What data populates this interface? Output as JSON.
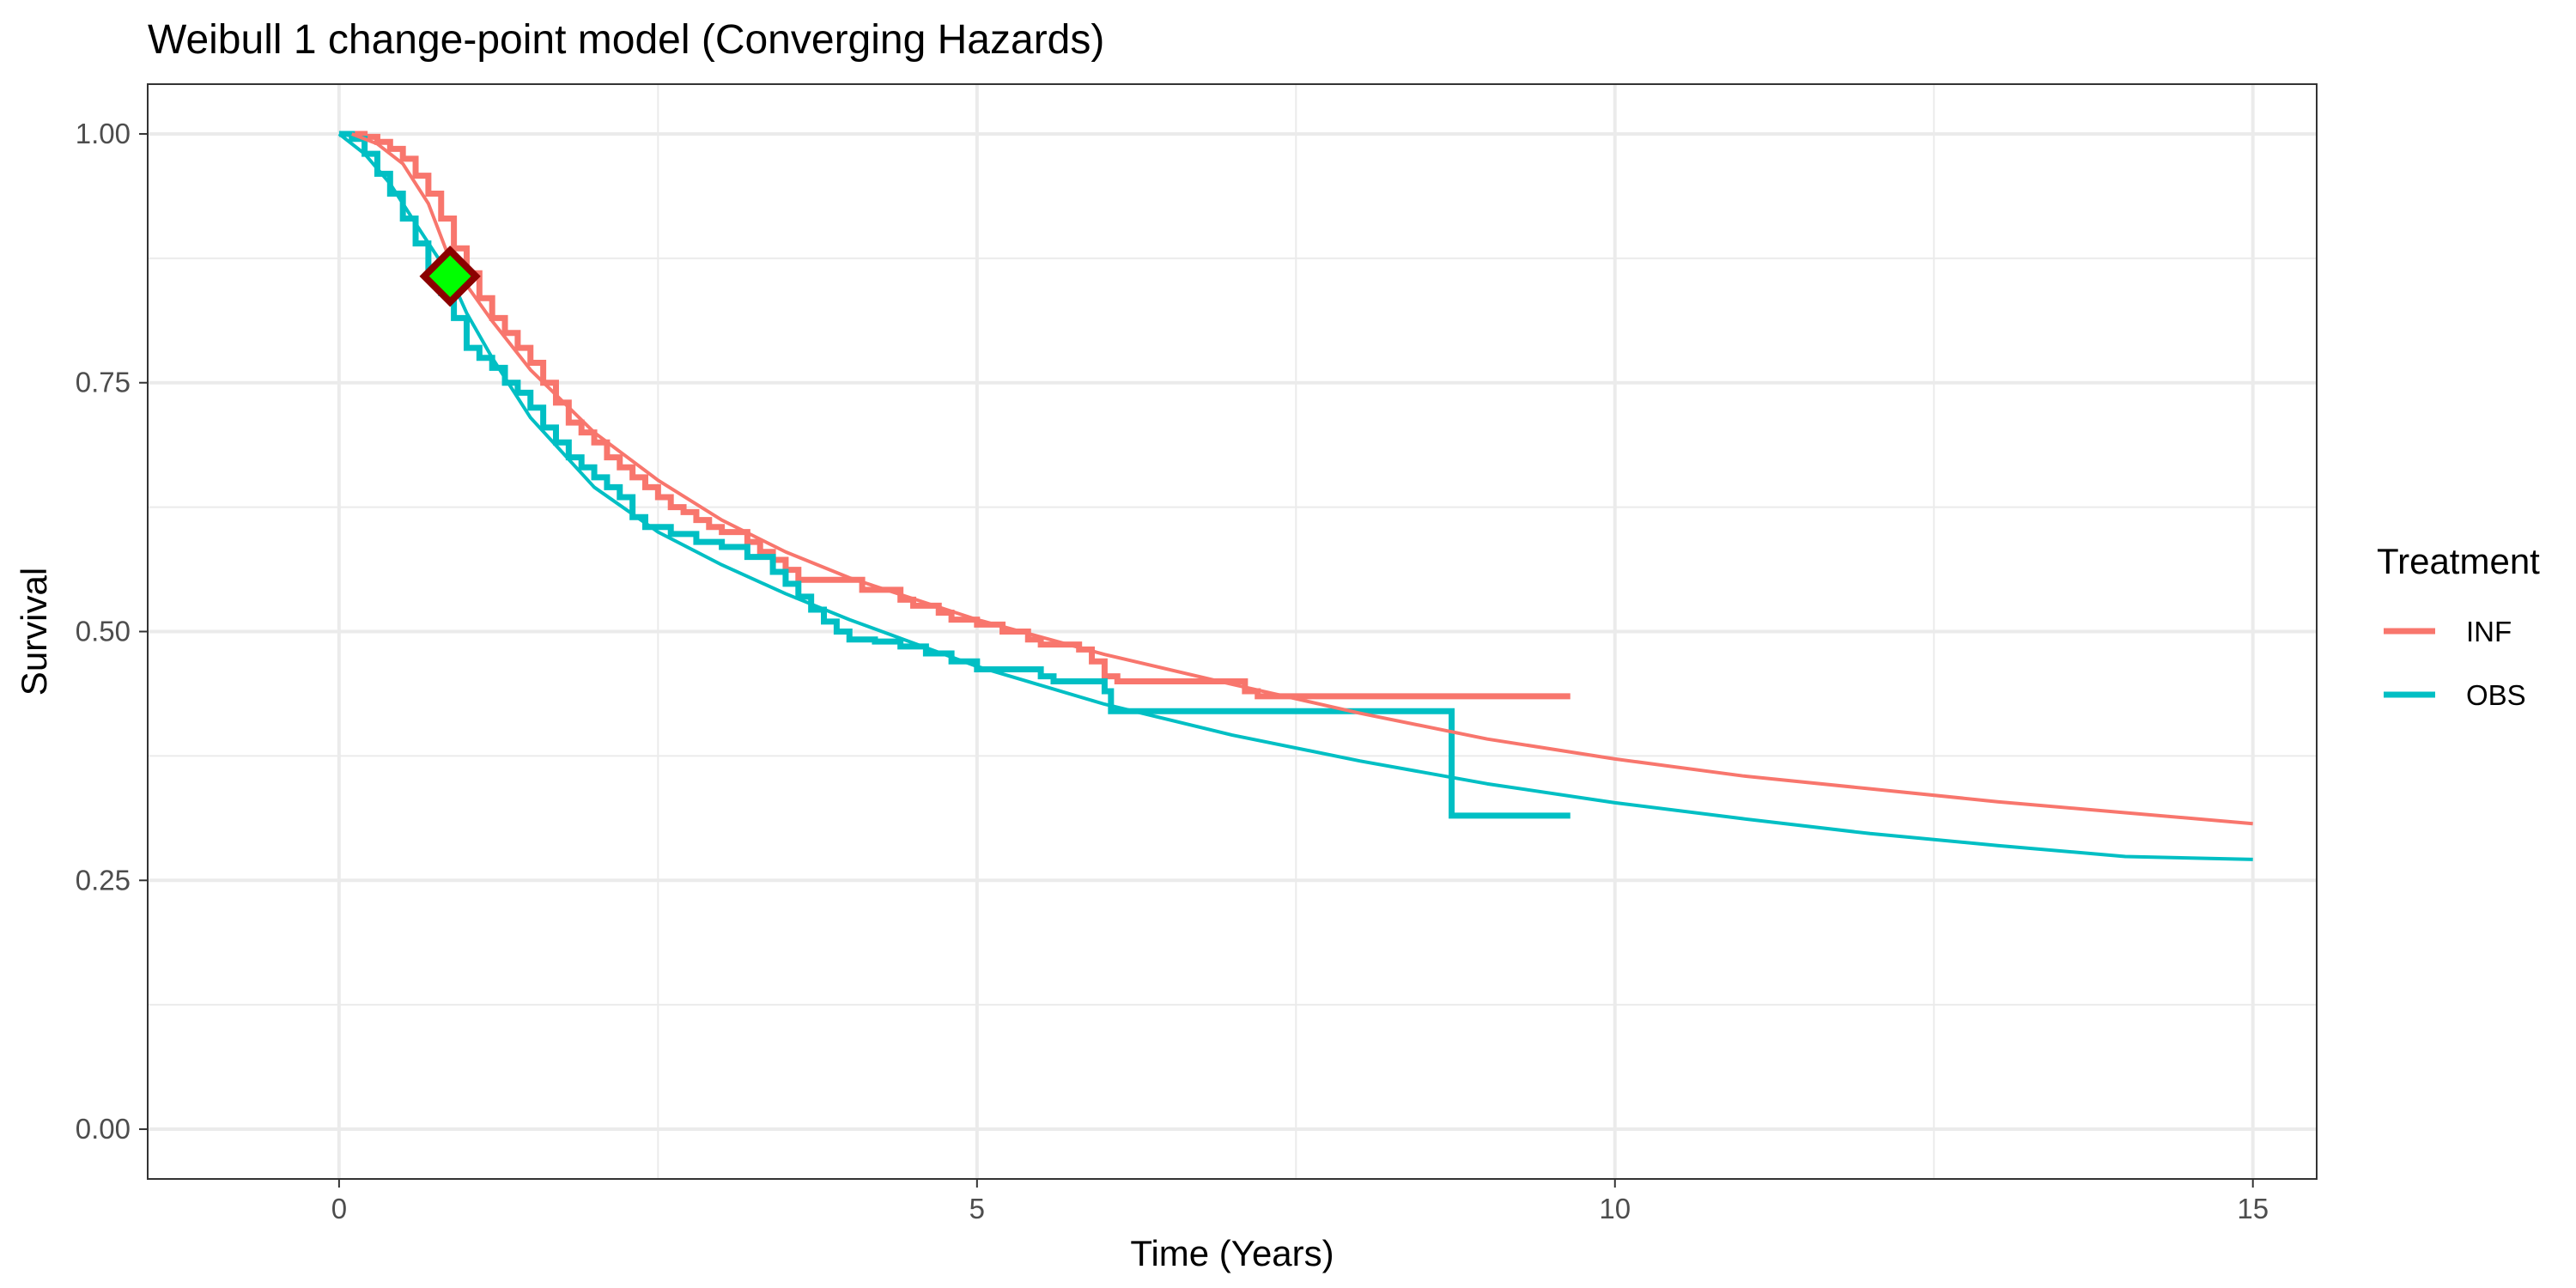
{
  "chart_data": {
    "type": "line",
    "title": "Weibull 1 change-point model (Converging Hazards)",
    "xlabel": "Time (Years)",
    "ylabel": "Survival",
    "xlim": [
      -1.5,
      15.5
    ],
    "ylim": [
      -0.05,
      1.05
    ],
    "x_ticks": [
      0,
      5,
      10,
      15
    ],
    "x_tick_labels": [
      "0",
      "5",
      "10",
      "15"
    ],
    "y_ticks": [
      0,
      0.25,
      0.5,
      0.75,
      1
    ],
    "y_tick_labels": [
      "0.00",
      "0.25",
      "0.50",
      "0.75",
      "1.00"
    ],
    "grid": true,
    "legend": {
      "title": "Treatment",
      "position": "right",
      "entries": [
        {
          "label": "INF",
          "color": "#F8766D"
        },
        {
          "label": "OBS",
          "color": "#00BFC4"
        }
      ]
    },
    "fitted_curves": [
      {
        "name": "INF",
        "color": "#F8766D",
        "points": [
          [
            0.1,
            1.0
          ],
          [
            0.3,
            0.99
          ],
          [
            0.5,
            0.97
          ],
          [
            0.7,
            0.93
          ],
          [
            0.87,
            0.873
          ],
          [
            1.0,
            0.848
          ],
          [
            1.2,
            0.812
          ],
          [
            1.5,
            0.763
          ],
          [
            2.0,
            0.7
          ],
          [
            2.5,
            0.652
          ],
          [
            3.0,
            0.612
          ],
          [
            3.5,
            0.58
          ],
          [
            4.0,
            0.554
          ],
          [
            5.0,
            0.512
          ],
          [
            6.0,
            0.477
          ],
          [
            7.0,
            0.447
          ],
          [
            8.0,
            0.418
          ],
          [
            9.0,
            0.392
          ],
          [
            10.0,
            0.372
          ],
          [
            11.0,
            0.355
          ],
          [
            12.0,
            0.342
          ],
          [
            13.0,
            0.329
          ],
          [
            14.0,
            0.318
          ],
          [
            15.0,
            0.307
          ]
        ]
      },
      {
        "name": "OBS",
        "color": "#00BFC4",
        "points": [
          [
            0.0,
            1.0
          ],
          [
            0.2,
            0.98
          ],
          [
            0.4,
            0.95
          ],
          [
            0.6,
            0.91
          ],
          [
            0.87,
            0.857
          ],
          [
            1.0,
            0.82
          ],
          [
            1.2,
            0.775
          ],
          [
            1.5,
            0.715
          ],
          [
            2.0,
            0.645
          ],
          [
            2.5,
            0.6
          ],
          [
            3.0,
            0.567
          ],
          [
            3.5,
            0.538
          ],
          [
            4.0,
            0.512
          ],
          [
            5.0,
            0.465
          ],
          [
            6.0,
            0.427
          ],
          [
            7.0,
            0.396
          ],
          [
            8.0,
            0.37
          ],
          [
            9.0,
            0.347
          ],
          [
            10.0,
            0.328
          ],
          [
            11.0,
            0.312
          ],
          [
            12.0,
            0.297
          ],
          [
            13.0,
            0.285
          ],
          [
            14.0,
            0.274
          ],
          [
            15.0,
            0.271
          ]
        ]
      }
    ],
    "km_curves": [
      {
        "name": "INF",
        "color": "#F8766D",
        "points": [
          [
            0.1,
            1.0
          ],
          [
            0.2,
            0.997
          ],
          [
            0.3,
            0.992
          ],
          [
            0.4,
            0.985
          ],
          [
            0.5,
            0.975
          ],
          [
            0.6,
            0.958
          ],
          [
            0.7,
            0.94
          ],
          [
            0.8,
            0.915
          ],
          [
            0.9,
            0.885
          ],
          [
            1.0,
            0.86
          ],
          [
            1.1,
            0.835
          ],
          [
            1.2,
            0.815
          ],
          [
            1.3,
            0.8
          ],
          [
            1.4,
            0.785
          ],
          [
            1.5,
            0.77
          ],
          [
            1.6,
            0.75
          ],
          [
            1.7,
            0.73
          ],
          [
            1.8,
            0.71
          ],
          [
            1.9,
            0.7
          ],
          [
            2.0,
            0.69
          ],
          [
            2.1,
            0.675
          ],
          [
            2.2,
            0.665
          ],
          [
            2.3,
            0.655
          ],
          [
            2.4,
            0.645
          ],
          [
            2.5,
            0.635
          ],
          [
            2.6,
            0.625
          ],
          [
            2.7,
            0.62
          ],
          [
            2.8,
            0.612
          ],
          [
            2.9,
            0.605
          ],
          [
            3.0,
            0.6
          ],
          [
            3.2,
            0.59
          ],
          [
            3.3,
            0.58
          ],
          [
            3.4,
            0.572
          ],
          [
            3.5,
            0.562
          ],
          [
            3.6,
            0.552
          ],
          [
            4.0,
            0.552
          ],
          [
            4.1,
            0.542
          ],
          [
            4.4,
            0.532
          ],
          [
            4.5,
            0.526
          ],
          [
            4.7,
            0.519
          ],
          [
            4.8,
            0.512
          ],
          [
            5.0,
            0.507
          ],
          [
            5.2,
            0.5
          ],
          [
            5.4,
            0.492
          ],
          [
            5.5,
            0.487
          ],
          [
            5.8,
            0.482
          ],
          [
            5.9,
            0.47
          ],
          [
            6.0,
            0.455
          ],
          [
            6.1,
            0.45
          ],
          [
            7.0,
            0.45
          ],
          [
            7.1,
            0.44
          ],
          [
            7.2,
            0.435
          ],
          [
            9.65,
            0.435
          ]
        ]
      },
      {
        "name": "OBS",
        "color": "#00BFC4",
        "points": [
          [
            0.0,
            1.0
          ],
          [
            0.1,
            0.995
          ],
          [
            0.2,
            0.98
          ],
          [
            0.3,
            0.96
          ],
          [
            0.4,
            0.94
          ],
          [
            0.5,
            0.915
          ],
          [
            0.6,
            0.89
          ],
          [
            0.7,
            0.865
          ],
          [
            0.8,
            0.84
          ],
          [
            0.9,
            0.815
          ],
          [
            1.0,
            0.785
          ],
          [
            1.1,
            0.775
          ],
          [
            1.2,
            0.765
          ],
          [
            1.3,
            0.75
          ],
          [
            1.4,
            0.74
          ],
          [
            1.5,
            0.725
          ],
          [
            1.6,
            0.705
          ],
          [
            1.7,
            0.69
          ],
          [
            1.8,
            0.675
          ],
          [
            1.9,
            0.665
          ],
          [
            2.0,
            0.655
          ],
          [
            2.1,
            0.645
          ],
          [
            2.2,
            0.635
          ],
          [
            2.3,
            0.615
          ],
          [
            2.4,
            0.605
          ],
          [
            2.6,
            0.598
          ],
          [
            2.8,
            0.59
          ],
          [
            3.0,
            0.585
          ],
          [
            3.2,
            0.575
          ],
          [
            3.4,
            0.56
          ],
          [
            3.5,
            0.548
          ],
          [
            3.6,
            0.535
          ],
          [
            3.7,
            0.522
          ],
          [
            3.8,
            0.51
          ],
          [
            3.9,
            0.5
          ],
          [
            4.0,
            0.492
          ],
          [
            4.2,
            0.49
          ],
          [
            4.4,
            0.485
          ],
          [
            4.6,
            0.478
          ],
          [
            4.8,
            0.47
          ],
          [
            5.0,
            0.462
          ],
          [
            5.5,
            0.455
          ],
          [
            5.6,
            0.45
          ],
          [
            6.0,
            0.44
          ],
          [
            6.05,
            0.42
          ],
          [
            8.7,
            0.42
          ],
          [
            8.72,
            0.315
          ],
          [
            9.65,
            0.315
          ]
        ]
      }
    ],
    "change_point": {
      "x": 0.87,
      "y": 0.857,
      "fill": "#00FF00",
      "stroke": "#8B0000"
    }
  }
}
